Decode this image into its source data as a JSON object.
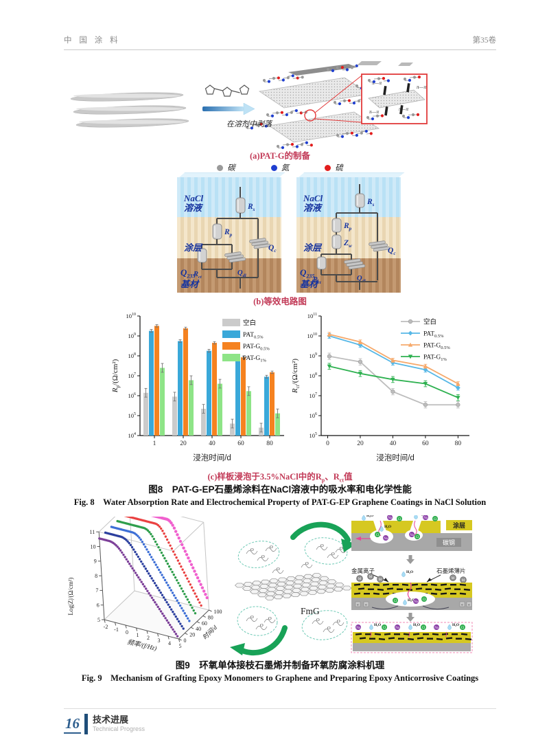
{
  "page": {
    "journal": "中 国 涂 料",
    "volume": "第35卷"
  },
  "fig8": {
    "sub_a": {
      "caption": "(a)PAT-G的制备",
      "arrow_label": "在溶剂中剥落",
      "pi_label": "π—π",
      "atom_legend": [
        {
          "label": "碳",
          "color": "#9a9a9a"
        },
        {
          "label": "氮",
          "color": "#1f3fd0"
        },
        {
          "label": "硫",
          "color": "#e21d1d"
        }
      ]
    },
    "sub_b": {
      "caption": "(b)等效电路图",
      "layers": {
        "solution_1": "NaCl",
        "solution_2": "溶液",
        "coating": "涂层",
        "substrate_main": "Q",
        "substrate_sub": "235",
        "substrate_label": "基材"
      },
      "elements": {
        "rs": {
          "m": "R",
          "s": "s"
        },
        "rp": {
          "m": "R",
          "s": "p"
        },
        "zw": {
          "m": "Z",
          "s": "w"
        },
        "qc": {
          "m": "Q",
          "s": "c"
        },
        "rct": {
          "m": "R",
          "s": "ct"
        },
        "qdl": {
          "m": "Q",
          "s": "dl"
        }
      }
    },
    "sub_c": {
      "caption_parts": [
        "(c)样板浸泡于3.5%NaCl中的R",
        "p",
        "、R",
        "ct",
        "值"
      ]
    },
    "caption_zh": "图8　PAT-G-EP石墨烯涂料在NaCl溶液中的吸水率和电化学性能",
    "caption_en": "Fig. 8　Water Absorption Rate and Electrochemical Property of PAT-G-EP Graphene Coatings in NaCl Solution"
  },
  "chart_data": [
    {
      "type": "bar",
      "log_scale": true,
      "categories": [
        "1",
        "20",
        "40",
        "60",
        "80"
      ],
      "xlabel": "浸泡时间/d",
      "ylabel": {
        "main": "R",
        "sub": "p",
        "rest": "/(Ω/cm²)"
      },
      "ylim_log": [
        4,
        10
      ],
      "legend_position": "top-right",
      "series": [
        {
          "name": {
            "main": "空白",
            "sub": ""
          },
          "color": "#cbcbcb",
          "err_dec": 0.22,
          "values": [
            1400000.0,
            900000.0,
            220000.0,
            40000.0,
            25000.0
          ]
        },
        {
          "name": {
            "main": "PAT",
            "sub": "0.5%"
          },
          "color": "#3aa8d9",
          "err_dec": 0.07,
          "values": [
            1800000000.0,
            550000000.0,
            180000000.0,
            65000000.0,
            9000000.0
          ]
        },
        {
          "name": {
            "main": "PAT-G",
            "sub": "0.5%"
          },
          "color": "#f58220",
          "err_dec": 0.06,
          "values": [
            3200000000.0,
            2400000000.0,
            450000000.0,
            85000000.0,
            15000000.0
          ]
        },
        {
          "name": {
            "main": "PAT-G",
            "sub": "1%"
          },
          "color": "#8ee487",
          "err_dec": 0.22,
          "values": [
            25000000.0,
            6000000.0,
            4000000.0,
            1700000.0,
            130000.0
          ]
        }
      ]
    },
    {
      "type": "line",
      "log_scale": true,
      "x": [
        1,
        20,
        40,
        60,
        80
      ],
      "xticks": [
        0,
        20,
        40,
        60,
        80
      ],
      "xlim": [
        -4,
        87
      ],
      "xlabel": "浸泡时间/d",
      "ylabel": {
        "main": "R",
        "sub": "ct",
        "rest": "/(Ω/cm²)"
      },
      "ylim_log": [
        5,
        11
      ],
      "legend_position": "top-right",
      "series": [
        {
          "name": {
            "main": "空白",
            "sub": ""
          },
          "color": "#bdbdbd",
          "marker": "circle",
          "err_dec": 0.16,
          "values": [
            950000000.0,
            500000000.0,
            16000000.0,
            3500000.0,
            3500000.0
          ]
        },
        {
          "name": {
            "main": "PAT",
            "sub": "0.5%"
          },
          "color": "#56b7e6",
          "marker": "diamond",
          "err_dec": 0.12,
          "values": [
            10000000000.0,
            3500000000.0,
            450000000.0,
            200000000.0,
            25000000.0
          ]
        },
        {
          "name": {
            "main": "PAT-G",
            "sub": "0.5%"
          },
          "color": "#f6a96b",
          "marker": "triangle",
          "err_dec": 0.1,
          "values": [
            12000000000.0,
            5000000000.0,
            600000000.0,
            300000000.0,
            40000000.0
          ]
        },
        {
          "name": {
            "main": "PAT-G",
            "sub": "1%"
          },
          "color": "#2eb150",
          "marker": "triangle-down",
          "err_dec": 0.15,
          "values": [
            300000000.0,
            130000000.0,
            65000000.0,
            40000000.0,
            8000000.0
          ]
        }
      ]
    },
    {
      "type": "line3d-waterfall",
      "xlabel": "频率/(f/Hz)",
      "ylabel": "时间/d",
      "zlabel": "Log|Z|/(Ω/cm²)",
      "xticks": [
        -2,
        -1,
        0,
        1,
        2,
        3,
        4,
        5
      ],
      "yticks": [
        0,
        20,
        40,
        60,
        80,
        100
      ],
      "zticks": [
        5,
        6,
        7,
        8,
        9,
        10,
        11
      ],
      "xlim": [
        -2,
        5
      ],
      "ylim": [
        0,
        100
      ],
      "zlim": [
        5,
        11
      ],
      "plateau": 10.55,
      "series": [
        {
          "time": 0,
          "color": "#7c3f98"
        },
        {
          "time": 20,
          "color": "#2b3f9e"
        },
        {
          "time": 40,
          "color": "#3d6fd6"
        },
        {
          "time": 60,
          "color": "#2f9e4c"
        },
        {
          "time": 80,
          "color": "#ea4141"
        },
        {
          "time": 100,
          "color": "#f060ce"
        }
      ]
    }
  ],
  "fig9": {
    "molecule_label": "FmG",
    "oxygen_label": "O",
    "mechanism": {
      "coating_label": "涂层",
      "steel_label": "碳钢",
      "metal_ion_label": "金属离子",
      "graphene_label": "石墨烯薄片",
      "ions": {
        "water": "H₂O",
        "chloride": "Cl",
        "sodium": "Na",
        "metal": "M",
        "electron": "e"
      }
    },
    "caption_zh": "图9　环氧单体接枝石墨烯并制备环氧防腐涂料机理",
    "caption_en": "Fig. 9　Mechanism of Grafting Epoxy Monomers to Graphene and Preparing Epoxy Anticorrosive Coatings"
  },
  "footer": {
    "page_number": "16",
    "section_zh": "技术进展",
    "section_en": "Technical Progress"
  }
}
